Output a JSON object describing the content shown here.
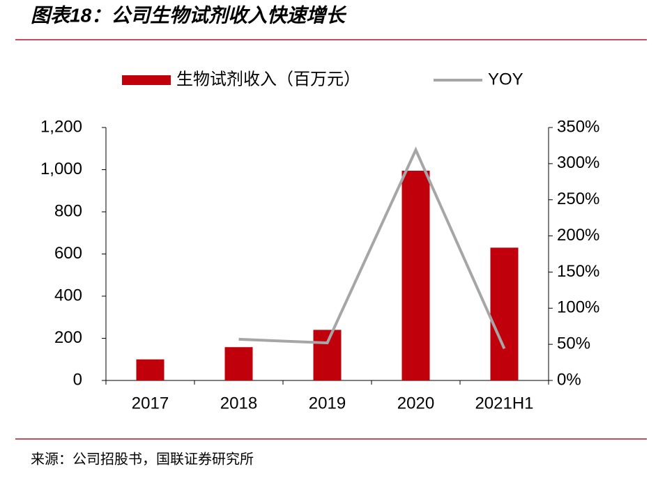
{
  "chart_data": {
    "type": "bar-line",
    "title": "图表18：公司生物试剂收入快速增长",
    "source": "来源：公司招股书，国联证券研究所",
    "categories": [
      "2017",
      "2018",
      "2019",
      "2020",
      "2021H1"
    ],
    "series": [
      {
        "name": "生物试剂收入（百万元）",
        "type": "bar",
        "color": "#c0000b",
        "values": [
          100,
          158,
          240,
          995,
          630
        ]
      },
      {
        "name": "YOY",
        "type": "line",
        "axis": "y2",
        "color": "#a6a6a6",
        "values": [
          null,
          57,
          52,
          319,
          44
        ]
      }
    ],
    "ylim": [
      0,
      1200
    ],
    "yticks": [
      0,
      200,
      400,
      600,
      800,
      {
        "value": 1000,
        "label": "1,000"
      },
      {
        "value": 1200,
        "label": "1,200"
      }
    ],
    "y2lim": [
      0,
      350
    ],
    "y2ticks": [
      {
        "value": 0,
        "label": "0%"
      },
      {
        "value": 50,
        "label": "50%"
      },
      {
        "value": 100,
        "label": "100%"
      },
      {
        "value": 150,
        "label": "150%"
      },
      {
        "value": 200,
        "label": "200%"
      },
      {
        "value": 250,
        "label": "250%"
      },
      {
        "value": 300,
        "label": "300%"
      },
      {
        "value": 350,
        "label": "350%"
      }
    ],
    "legend": "top"
  }
}
